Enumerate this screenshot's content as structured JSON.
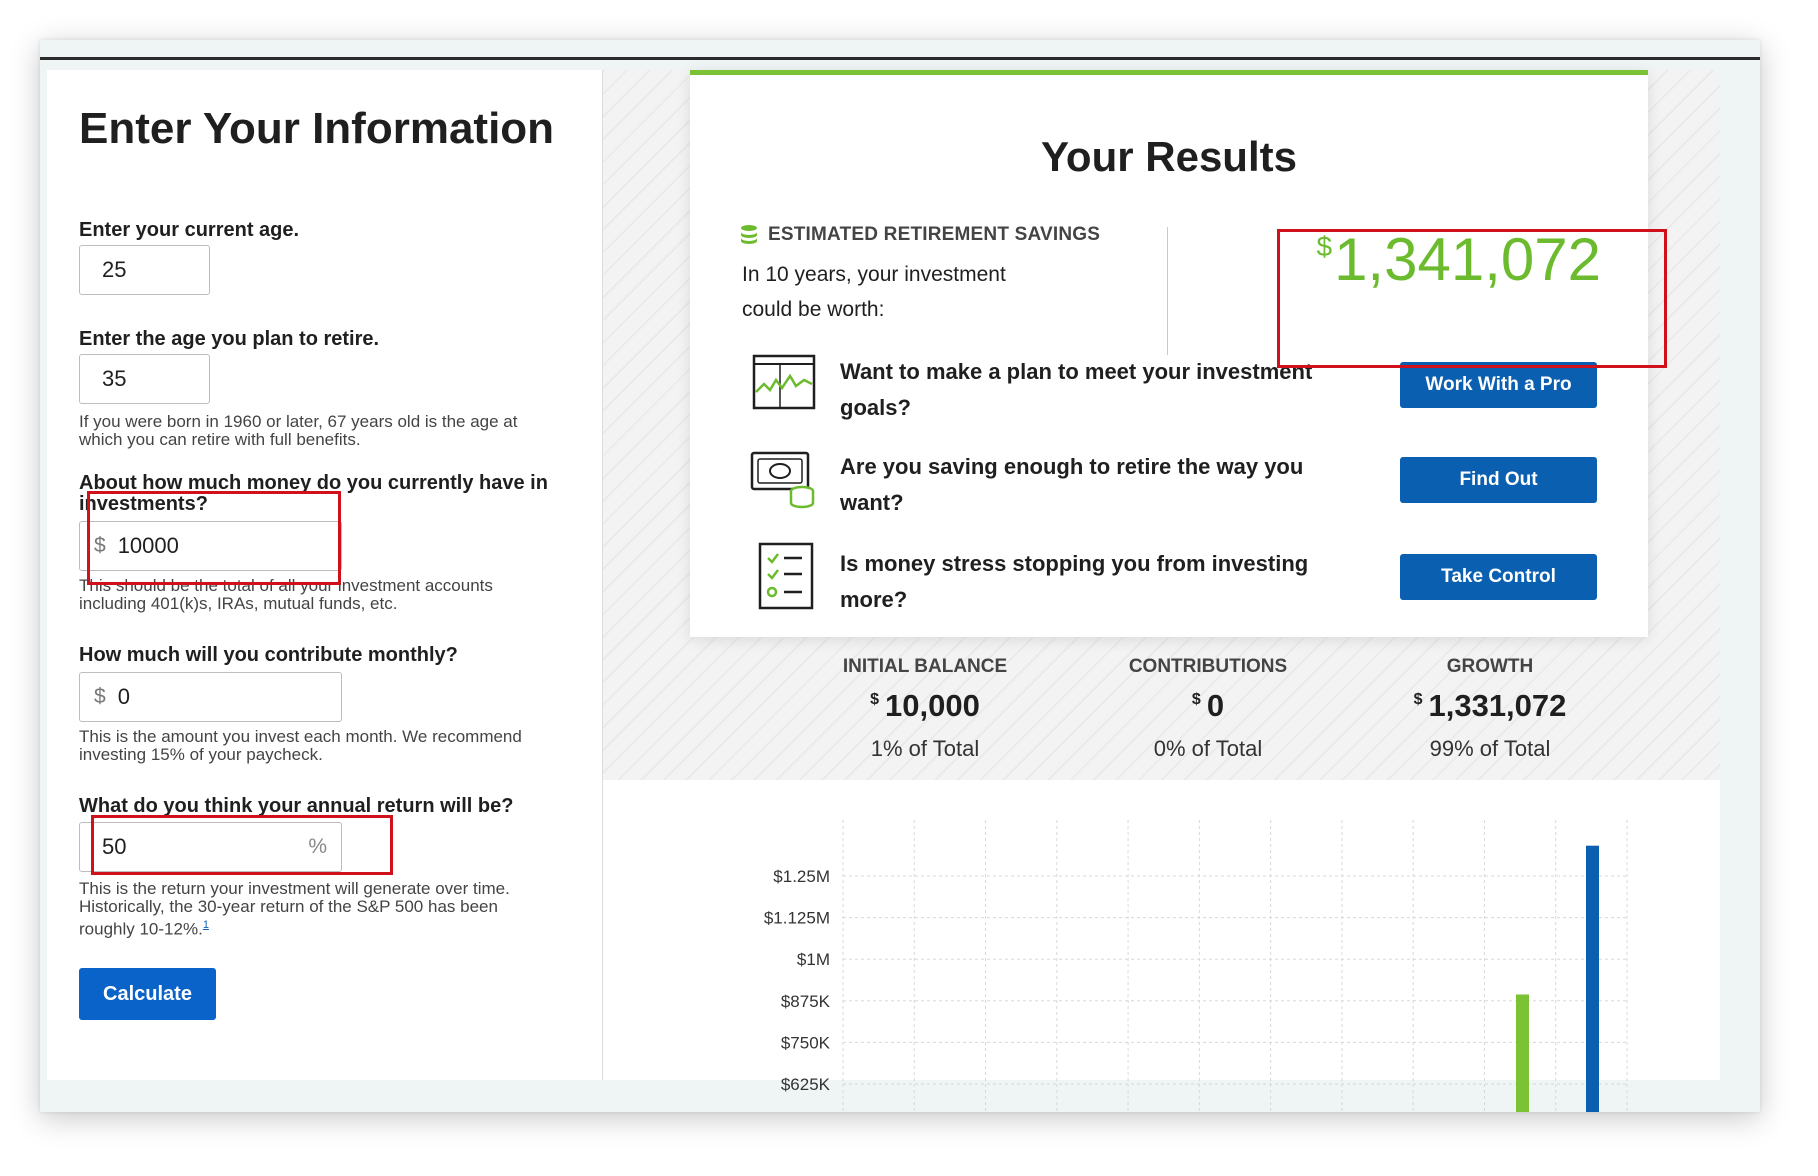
{
  "form": {
    "title": "Enter Your Information",
    "current_age": {
      "label": "Enter your current age.",
      "value": "25"
    },
    "retire_age": {
      "label": "Enter the age you plan to retire.",
      "value": "35",
      "help": "If you were born in 1960 or later, 67 years old is the age at which you can retire with full benefits."
    },
    "investments": {
      "label": "About how much money do you currently have in investments?",
      "prefix": "$",
      "value": "10000",
      "help": "This should be the total of all your investment accounts including 401(k)s, IRAs, mutual funds, etc."
    },
    "monthly": {
      "label": "How much will you contribute monthly?",
      "prefix": "$",
      "value": "0",
      "help": "This is the amount you invest each month. We recommend investing 15% of your paycheck."
    },
    "annual_return": {
      "label": "What do you think your annual return will be?",
      "value": "50",
      "suffix": "%",
      "help": "This is the return your investment will generate over time. Historically, the 30-year return of the S&P 500 has been roughly 10-12%.",
      "footnote": "1"
    },
    "calculate_label": "Calculate"
  },
  "results": {
    "title": "Your Results",
    "estimated_label": "ESTIMATED RETIREMENT SAVINGS",
    "estimated_text": "In 10 years, your investment could be worth:",
    "currency": "$",
    "estimated_value": "1,341,072",
    "ctas": [
      {
        "icon": "chart-monitor-icon",
        "text": "Want to make a plan to meet your investment goals?",
        "button": "Work With a Pro"
      },
      {
        "icon": "cash-coins-icon",
        "text": "Are you saving enough to retire the way you want?",
        "button": "Find Out"
      },
      {
        "icon": "checklist-icon",
        "text": "Is money stress stopping you from investing more?",
        "button": "Take Control"
      }
    ]
  },
  "stats": [
    {
      "label": "INITIAL BALANCE",
      "currency": "$",
      "amount": "10,000",
      "pct": "1% of Total"
    },
    {
      "label": "CONTRIBUTIONS",
      "currency": "$",
      "amount": "0",
      "pct": "0% of Total"
    },
    {
      "label": "GROWTH",
      "currency": "$",
      "amount": "1,331,072",
      "pct": "99% of Total"
    }
  ],
  "chart_data": {
    "type": "bar",
    "y_ticks": [
      "$1.25M",
      "$1.125M",
      "$1M",
      "$875K",
      "$750K",
      "$625K"
    ],
    "y_tick_values": [
      1250000,
      1125000,
      1000000,
      875000,
      750000,
      625000
    ],
    "ylim_visible": [
      625000,
      1250000
    ],
    "grid": true,
    "bars": [
      {
        "value": 894000,
        "color": "#7bc234"
      },
      {
        "value": 1341072,
        "color": "#0a5fb0"
      }
    ]
  },
  "colors": {
    "accent_green": "#6cbb2e",
    "primary_blue": "#0a5fb0",
    "highlight_red": "#d0101b"
  }
}
